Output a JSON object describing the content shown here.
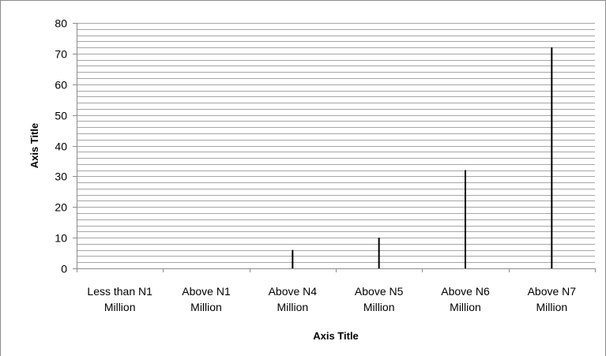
{
  "chart_data": {
    "type": "bar",
    "categories": [
      [
        "Less than N1",
        "Million"
      ],
      [
        "Above N1",
        "Million"
      ],
      [
        "Above N4",
        "Million"
      ],
      [
        "Above N5",
        "Million"
      ],
      [
        "Above N6",
        "Million"
      ],
      [
        "Above N7",
        "Million"
      ]
    ],
    "values": [
      0,
      0,
      6,
      10,
      32,
      72
    ],
    "xlabel": "Axis Title",
    "ylabel": "Axis Title",
    "ylim": [
      0,
      80
    ],
    "yticks": [
      0,
      10,
      20,
      30,
      40,
      50,
      60,
      70,
      80
    ],
    "grid": true,
    "minor_grid_step": 2,
    "colors": {
      "bar": "#000000",
      "grid": "#a6a6a6",
      "axis": "#8c8c8c",
      "frame": "#8c8c8c"
    }
  }
}
